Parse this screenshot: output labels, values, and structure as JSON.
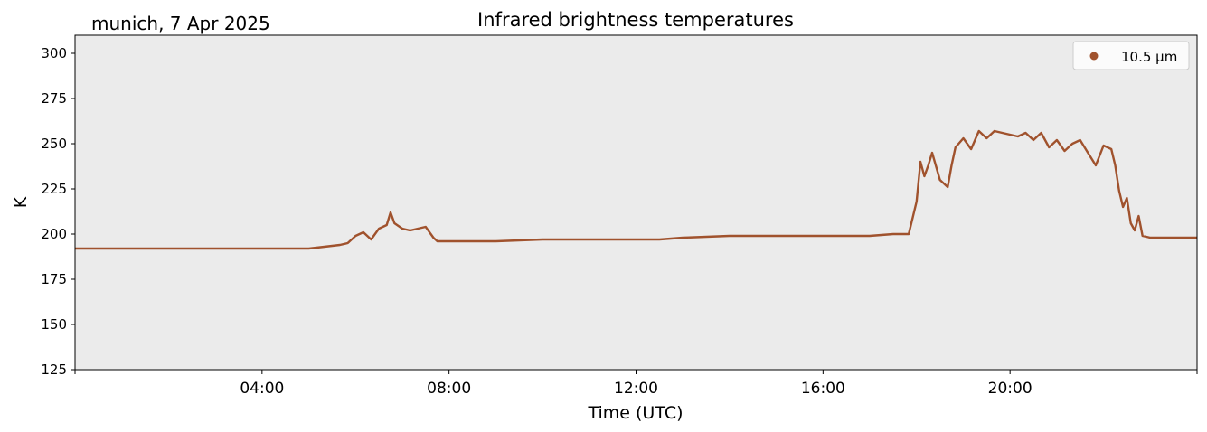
{
  "location_date": "munich, 7 Apr 2025",
  "chart_data": {
    "type": "line",
    "title": "Infrared brightness temperatures",
    "xlabel": "Time (UTC)",
    "ylabel": "K",
    "xlim": [
      "00:00",
      "24:00"
    ],
    "ylim": [
      125,
      310
    ],
    "x_tick_labels": [
      "04:00",
      "08:00",
      "12:00",
      "16:00",
      "20:00"
    ],
    "y_ticks": [
      125,
      150,
      175,
      200,
      225,
      250,
      275,
      300
    ],
    "grid": false,
    "background": "#ebebeb",
    "legend": {
      "placement": "top-right"
    },
    "series": [
      {
        "name": "10.5 µm",
        "color": "#a0522d",
        "x": [
          "00:00",
          "00:30",
          "01:00",
          "01:30",
          "02:00",
          "02:30",
          "03:00",
          "03:30",
          "04:00",
          "04:30",
          "05:00",
          "05:20",
          "05:40",
          "05:50",
          "06:00",
          "06:10",
          "06:20",
          "06:30",
          "06:40",
          "06:45",
          "06:50",
          "07:00",
          "07:10",
          "07:20",
          "07:30",
          "07:40",
          "07:45",
          "07:50",
          "08:00",
          "09:00",
          "10:00",
          "11:00",
          "12:00",
          "12:30",
          "13:00",
          "14:00",
          "15:00",
          "16:00",
          "17:00",
          "17:30",
          "17:50",
          "18:00",
          "18:05",
          "18:10",
          "18:15",
          "18:20",
          "18:30",
          "18:40",
          "18:45",
          "18:50",
          "19:00",
          "19:10",
          "19:20",
          "19:30",
          "19:40",
          "19:50",
          "20:00",
          "20:10",
          "20:20",
          "20:30",
          "20:40",
          "20:50",
          "21:00",
          "21:10",
          "21:20",
          "21:30",
          "21:40",
          "21:50",
          "22:00",
          "22:10",
          "22:15",
          "22:20",
          "22:25",
          "22:30",
          "22:35",
          "22:40",
          "22:45",
          "22:50",
          "23:00",
          "23:30",
          "24:00"
        ],
        "values": [
          192,
          192,
          192,
          192,
          192,
          192,
          192,
          192,
          192,
          192,
          192,
          193,
          194,
          195,
          199,
          201,
          197,
          203,
          205,
          212,
          206,
          203,
          202,
          203,
          204,
          198,
          196,
          196,
          196,
          196,
          197,
          197,
          197,
          197,
          198,
          199,
          199,
          199,
          199,
          200,
          200,
          218,
          240,
          232,
          238,
          245,
          230,
          226,
          238,
          248,
          253,
          247,
          257,
          253,
          257,
          256,
          255,
          254,
          256,
          252,
          256,
          248,
          252,
          246,
          250,
          252,
          245,
          238,
          249,
          247,
          238,
          224,
          215,
          220,
          206,
          202,
          210,
          199,
          198,
          198,
          198
        ]
      }
    ]
  }
}
